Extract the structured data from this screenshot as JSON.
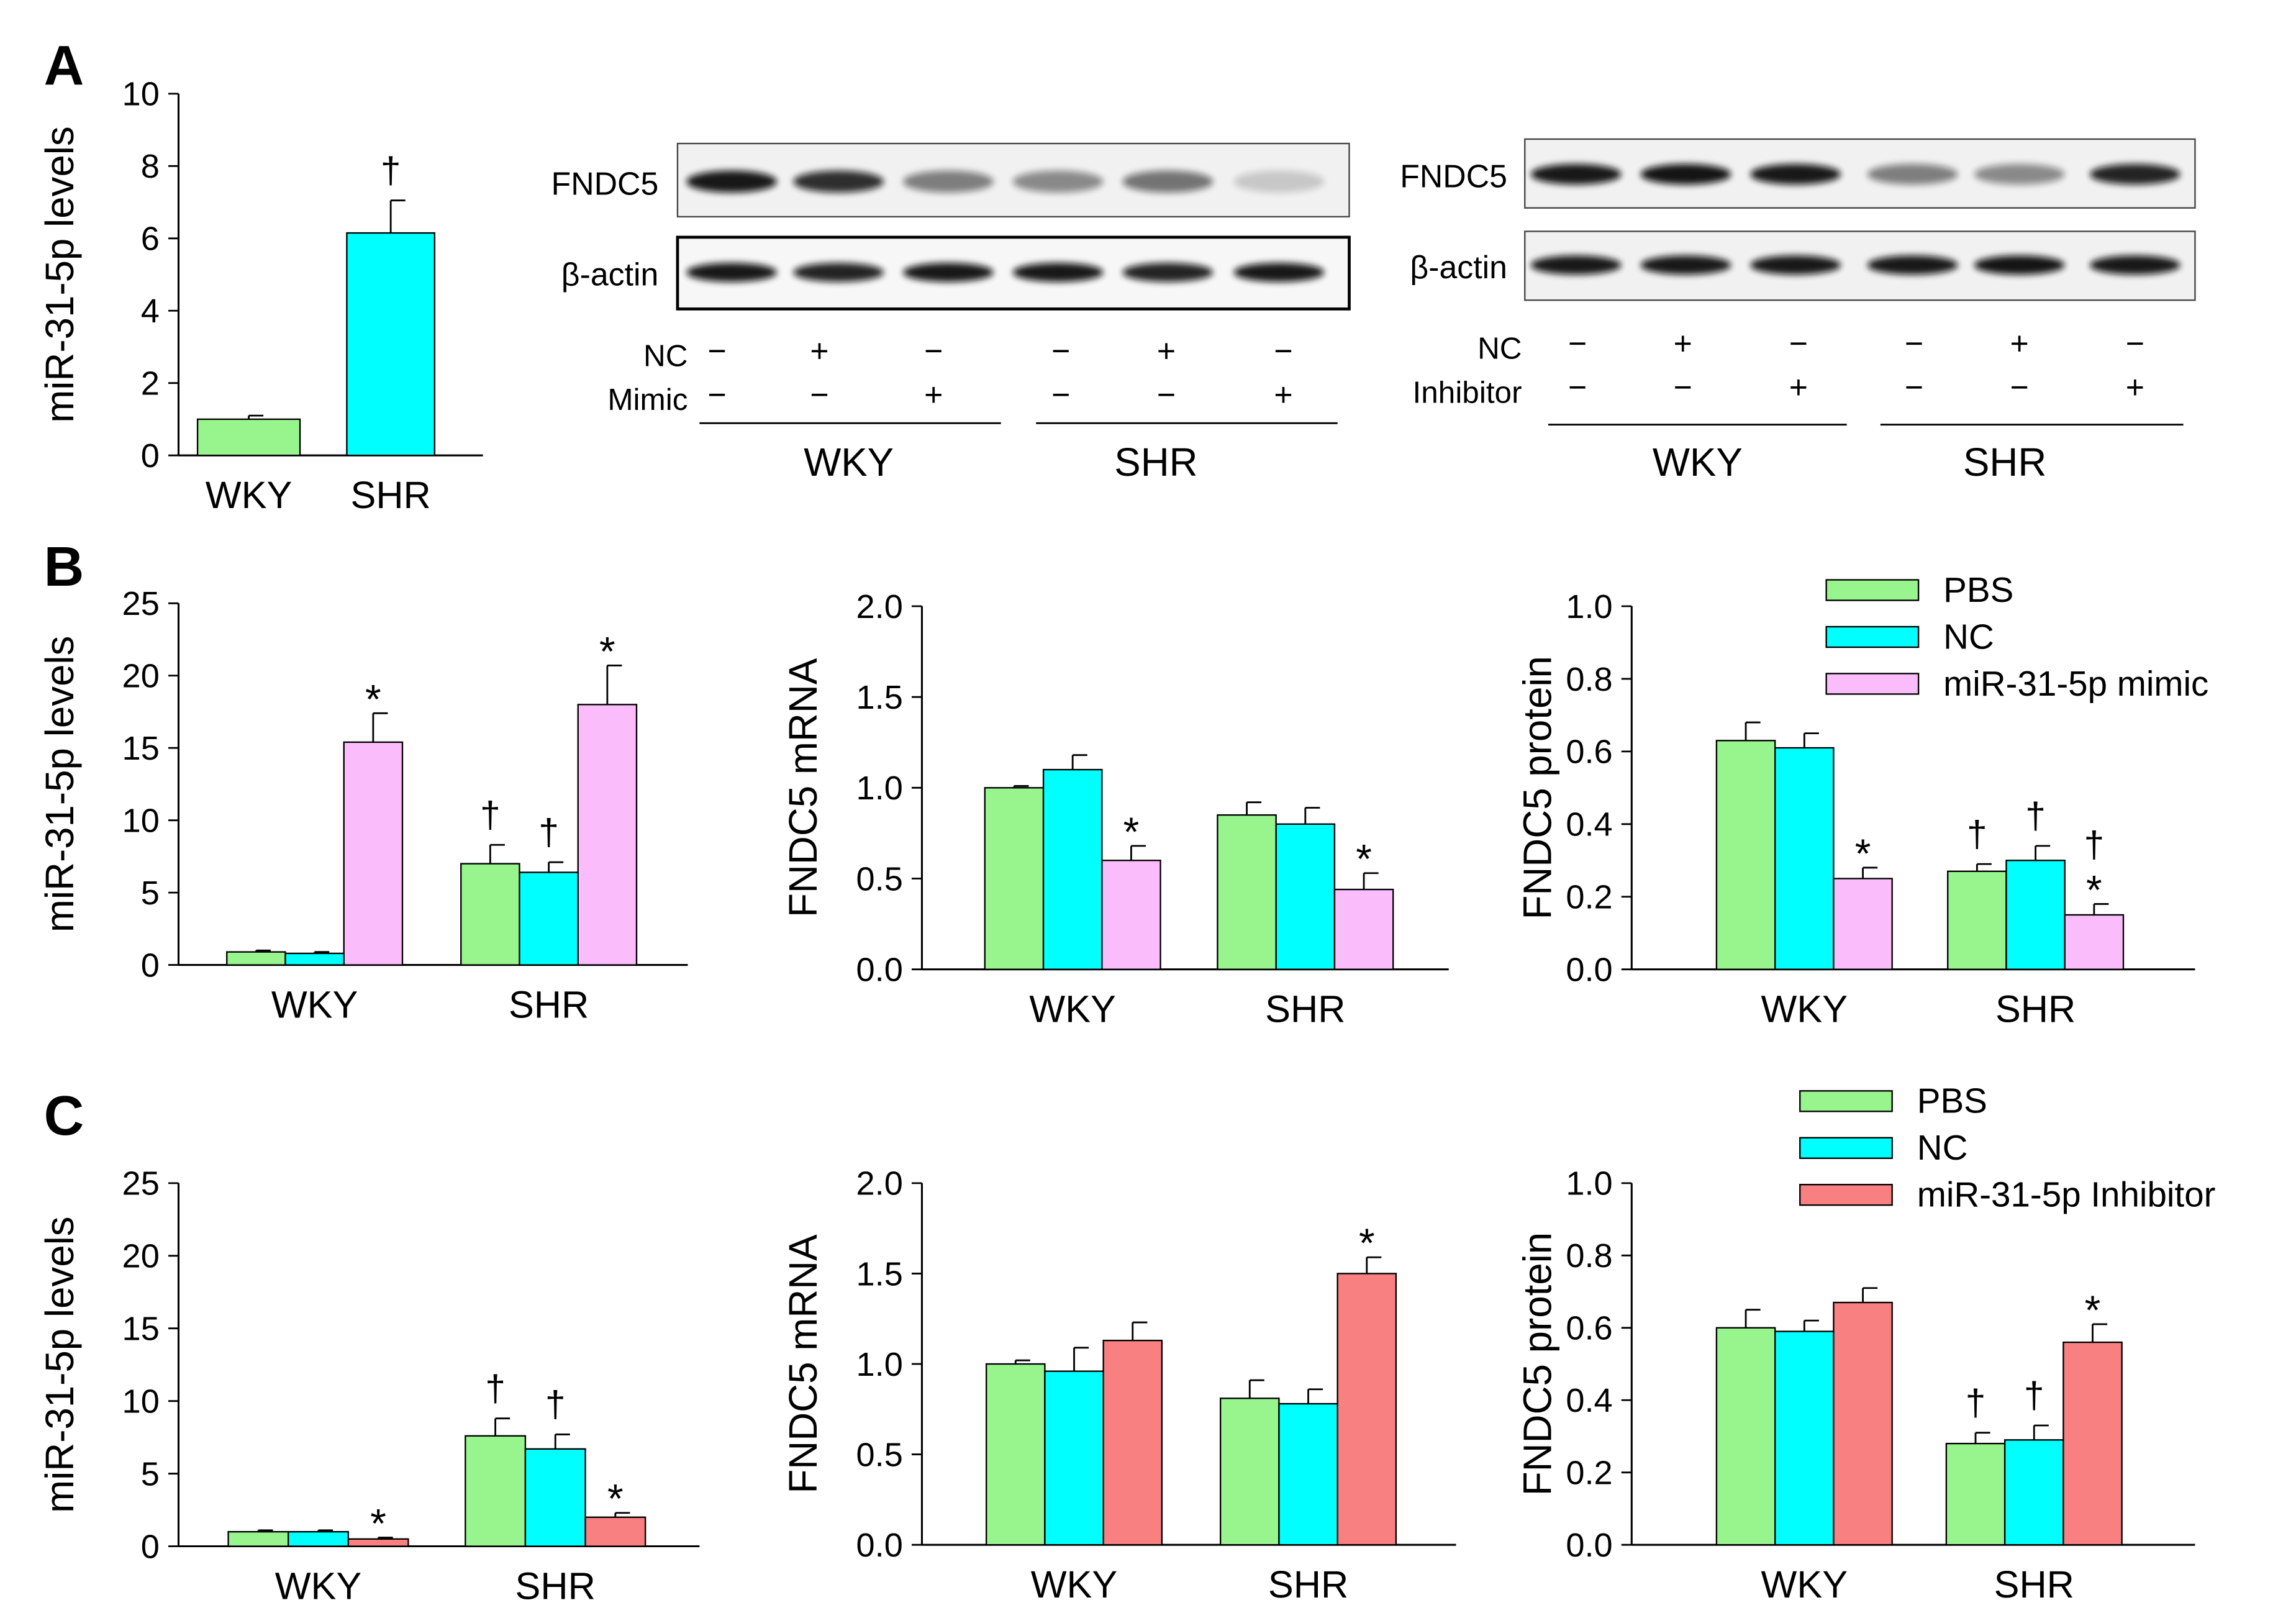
{
  "colors": {
    "green": "#98f58e",
    "cyan": "#00ffff",
    "pink": "#fbbcfb",
    "salmon": "#f88080"
  },
  "panel_letters": [
    "A",
    "B",
    "C"
  ],
  "blot1": {
    "protein_labels": [
      "FNDC5",
      "β-actin"
    ],
    "row_labels": [
      "NC",
      "Mimic"
    ],
    "rows": [
      [
        "−",
        "+",
        "−",
        "−",
        "+",
        "−"
      ],
      [
        "−",
        "−",
        "+",
        "−",
        "−",
        "+"
      ]
    ],
    "group_labels": [
      "WKY",
      "SHR"
    ]
  },
  "blot2": {
    "protein_labels": [
      "FNDC5",
      "β-actin"
    ],
    "row_labels": [
      "NC",
      "Inhibitor"
    ],
    "rows": [
      [
        "−",
        "+",
        "−",
        "−",
        "+",
        "−"
      ],
      [
        "−",
        "−",
        "+",
        "−",
        "−",
        "+"
      ]
    ],
    "group_labels": [
      "WKY",
      "SHR"
    ]
  },
  "legend_B": [
    "PBS",
    "NC",
    "miR-31-5p mimic"
  ],
  "legend_C": [
    "PBS",
    "NC",
    "miR-31-5p Inhibitor"
  ],
  "chart_data": [
    {
      "id": "A1",
      "type": "bar",
      "ylabel": "miR-31-5p levels",
      "ylim": [
        0,
        10
      ],
      "yticks": [
        "0",
        "2",
        "4",
        "6",
        "8",
        "10"
      ],
      "categories": [
        "WKY",
        "SHR"
      ],
      "series": [
        {
          "name": "",
          "values": [
            1.0,
            6.15
          ],
          "errors": [
            0.1,
            0.9
          ],
          "colors": [
            "green",
            "cyan"
          ]
        }
      ],
      "annotations": [
        {
          "category": 1,
          "series": 0,
          "text": "†"
        }
      ]
    },
    {
      "id": "B1",
      "type": "bar",
      "ylabel": "miR-31-5p levels",
      "ylim": [
        0,
        25
      ],
      "yticks": [
        "0",
        "5",
        "10",
        "15",
        "20",
        "25"
      ],
      "categories": [
        "WKY",
        "SHR"
      ],
      "series": [
        {
          "name": "PBS",
          "values": [
            0.9,
            7.0
          ],
          "errors": [
            0.1,
            1.3
          ]
        },
        {
          "name": "NC",
          "values": [
            0.8,
            6.4
          ],
          "errors": [
            0.1,
            0.7
          ]
        },
        {
          "name": "miR-31-5p mimic",
          "values": [
            15.4,
            18.0
          ],
          "errors": [
            2.0,
            2.7
          ]
        }
      ],
      "annotations": [
        {
          "category": 0,
          "series": 2,
          "text": "*"
        },
        {
          "category": 1,
          "series": 0,
          "text": "†"
        },
        {
          "category": 1,
          "series": 1,
          "text": "†"
        },
        {
          "category": 1,
          "series": 2,
          "text": "*"
        }
      ]
    },
    {
      "id": "B2",
      "type": "bar",
      "ylabel": "FNDC5 mRNA",
      "ylim": [
        0,
        2
      ],
      "yticks": [
        "0.0",
        "0.5",
        "1.0",
        "1.5",
        "2.0"
      ],
      "categories": [
        "WKY",
        "SHR"
      ],
      "series": [
        {
          "name": "PBS",
          "values": [
            1.0,
            0.85
          ],
          "errors": [
            0.01,
            0.07
          ]
        },
        {
          "name": "NC",
          "values": [
            1.1,
            0.8
          ],
          "errors": [
            0.08,
            0.09
          ]
        },
        {
          "name": "miR-31-5p mimic",
          "values": [
            0.6,
            0.44
          ],
          "errors": [
            0.08,
            0.09
          ]
        }
      ],
      "annotations": [
        {
          "category": 0,
          "series": 2,
          "text": "*"
        },
        {
          "category": 1,
          "series": 2,
          "text": "*"
        }
      ]
    },
    {
      "id": "B3",
      "type": "bar",
      "ylabel": "FNDC5 protein",
      "ylim": [
        0,
        1
      ],
      "yticks": [
        "0.0",
        "0.2",
        "0.4",
        "0.6",
        "0.8",
        "1.0"
      ],
      "categories": [
        "WKY",
        "SHR"
      ],
      "series": [
        {
          "name": "PBS",
          "values": [
            0.63,
            0.27
          ],
          "errors": [
            0.05,
            0.02
          ]
        },
        {
          "name": "NC",
          "values": [
            0.61,
            0.3
          ],
          "errors": [
            0.04,
            0.04
          ]
        },
        {
          "name": "miR-31-5p mimic",
          "values": [
            0.25,
            0.15
          ],
          "errors": [
            0.03,
            0.03
          ]
        }
      ],
      "annotations": [
        {
          "category": 0,
          "series": 2,
          "text": "*"
        },
        {
          "category": 1,
          "series": 0,
          "text": "†"
        },
        {
          "category": 1,
          "series": 1,
          "text": "†"
        },
        {
          "category": 1,
          "series": 2,
          "text": "*"
        },
        {
          "category": 1,
          "series": 2,
          "text": "†"
        }
      ]
    },
    {
      "id": "C1",
      "type": "bar",
      "ylabel": "miR-31-5p levels",
      "ylim": [
        0,
        25
      ],
      "yticks": [
        "0",
        "5",
        "10",
        "15",
        "20",
        "25"
      ],
      "categories": [
        "WKY",
        "SHR"
      ],
      "series": [
        {
          "name": "PBS",
          "values": [
            1.0,
            7.6
          ],
          "errors": [
            0.1,
            1.2
          ]
        },
        {
          "name": "NC",
          "values": [
            1.0,
            6.7
          ],
          "errors": [
            0.1,
            1.0
          ]
        },
        {
          "name": "miR-31-5p Inhibitor",
          "values": [
            0.5,
            2.0
          ],
          "errors": [
            0.1,
            0.3
          ]
        }
      ],
      "annotations": [
        {
          "category": 0,
          "series": 2,
          "text": "*"
        },
        {
          "category": 1,
          "series": 0,
          "text": "†"
        },
        {
          "category": 1,
          "series": 1,
          "text": "†"
        },
        {
          "category": 1,
          "series": 2,
          "text": "*"
        }
      ]
    },
    {
      "id": "C2",
      "type": "bar",
      "ylabel": "FNDC5 mRNA",
      "ylim": [
        0,
        2
      ],
      "yticks": [
        "0.0",
        "0.5",
        "1.0",
        "1.5",
        "2.0"
      ],
      "categories": [
        "WKY",
        "SHR"
      ],
      "series": [
        {
          "name": "PBS",
          "values": [
            1.0,
            0.81
          ],
          "errors": [
            0.02,
            0.1
          ]
        },
        {
          "name": "NC",
          "values": [
            0.96,
            0.78
          ],
          "errors": [
            0.13,
            0.08
          ]
        },
        {
          "name": "miR-31-5p Inhibitor",
          "values": [
            1.13,
            1.5
          ],
          "errors": [
            0.1,
            0.09
          ]
        }
      ],
      "annotations": [
        {
          "category": 1,
          "series": 2,
          "text": "*"
        }
      ]
    },
    {
      "id": "C3",
      "type": "bar",
      "ylabel": "FNDC5 protein",
      "ylim": [
        0,
        1
      ],
      "yticks": [
        "0.0",
        "0.2",
        "0.4",
        "0.6",
        "0.8",
        "1.0"
      ],
      "categories": [
        "WKY",
        "SHR"
      ],
      "series": [
        {
          "name": "PBS",
          "values": [
            0.6,
            0.28
          ],
          "errors": [
            0.05,
            0.03
          ]
        },
        {
          "name": "NC",
          "values": [
            0.59,
            0.29
          ],
          "errors": [
            0.03,
            0.04
          ]
        },
        {
          "name": "miR-31-5p Inhibitor",
          "values": [
            0.67,
            0.56
          ],
          "errors": [
            0.04,
            0.05
          ]
        }
      ],
      "annotations": [
        {
          "category": 1,
          "series": 0,
          "text": "†"
        },
        {
          "category": 1,
          "series": 1,
          "text": "†"
        },
        {
          "category": 1,
          "series": 2,
          "text": "*"
        }
      ]
    }
  ]
}
